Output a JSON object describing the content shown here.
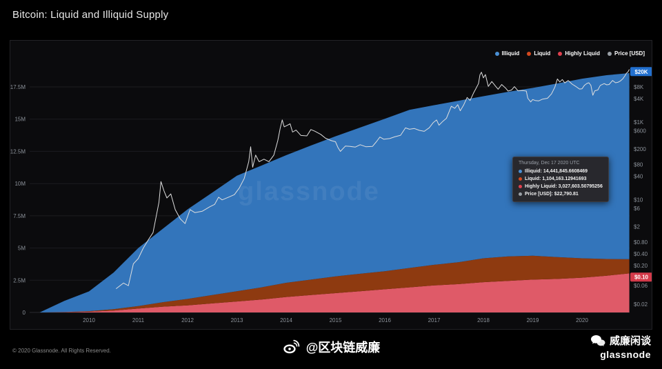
{
  "header": {
    "title": "Bitcoin: Liquid and Illiquid Supply"
  },
  "legend": {
    "items": [
      {
        "label": "Illiquid",
        "color": "#4a8fd4"
      },
      {
        "label": "Liquid",
        "color": "#d4491f"
      },
      {
        "label": "Highly Liquid",
        "color": "#e0404e"
      },
      {
        "label": "Price [USD]",
        "color": "#9aa0a6"
      }
    ]
  },
  "chart_data": {
    "type": "area",
    "stacked": true,
    "title": "Bitcoin: Liquid and Illiquid Supply",
    "unit": "BTC (millions, left axis) / USD (log, right axis)",
    "watermark": "glassnode",
    "x_years": [
      2009.0,
      2009.5,
      2010.0,
      2010.5,
      2011.0,
      2011.5,
      2012.0,
      2012.5,
      2013.0,
      2013.5,
      2014.0,
      2014.5,
      2015.0,
      2015.5,
      2016.0,
      2016.5,
      2017.0,
      2017.5,
      2018.0,
      2018.5,
      2019.0,
      2019.5,
      2020.0,
      2020.5,
      2020.96
    ],
    "series": [
      {
        "name": "Highly Liquid",
        "color": "#df5a68",
        "values": [
          0,
          0.02,
          0.06,
          0.15,
          0.3,
          0.45,
          0.55,
          0.7,
          0.85,
          1.0,
          1.2,
          1.35,
          1.5,
          1.65,
          1.8,
          1.95,
          2.1,
          2.2,
          2.35,
          2.45,
          2.55,
          2.6,
          2.7,
          2.85,
          3.03
        ]
      },
      {
        "name": "Liquid",
        "color": "#8e3a10",
        "values": [
          0,
          0.01,
          0.04,
          0.1,
          0.2,
          0.35,
          0.5,
          0.65,
          0.8,
          0.95,
          1.1,
          1.2,
          1.3,
          1.35,
          1.4,
          1.5,
          1.6,
          1.7,
          1.85,
          1.9,
          1.85,
          1.7,
          1.5,
          1.3,
          1.1
        ]
      },
      {
        "name": "Illiquid",
        "color": "#3375bb",
        "values": [
          0,
          0.87,
          1.53,
          2.85,
          4.5,
          5.7,
          6.95,
          7.95,
          8.96,
          9.45,
          9.9,
          10.4,
          10.87,
          11.35,
          11.83,
          12.27,
          12.38,
          12.53,
          12.58,
          12.77,
          13.02,
          13.47,
          13.94,
          14.26,
          14.44
        ]
      }
    ],
    "price_series": {
      "name": "Price [USD]",
      "color": "#dfdfdf",
      "points": [
        [
          2010.55,
          0.05
        ],
        [
          2010.7,
          0.07
        ],
        [
          2010.8,
          0.06
        ],
        [
          2010.9,
          0.22
        ],
        [
          2011.0,
          0.3
        ],
        [
          2011.1,
          0.55
        ],
        [
          2011.2,
          0.9
        ],
        [
          2011.3,
          1.4
        ],
        [
          2011.42,
          8.5
        ],
        [
          2011.46,
          29
        ],
        [
          2011.52,
          17
        ],
        [
          2011.58,
          11
        ],
        [
          2011.66,
          14
        ],
        [
          2011.75,
          5.5
        ],
        [
          2011.85,
          3.2
        ],
        [
          2011.95,
          2.4
        ],
        [
          2012.05,
          5.5
        ],
        [
          2012.15,
          4.6
        ],
        [
          2012.3,
          5.0
        ],
        [
          2012.45,
          6.5
        ],
        [
          2012.55,
          7.5
        ],
        [
          2012.63,
          11.5
        ],
        [
          2012.7,
          9.8
        ],
        [
          2012.85,
          11.8
        ],
        [
          2012.95,
          13.4
        ],
        [
          2013.05,
          20
        ],
        [
          2013.15,
          35
        ],
        [
          2013.24,
          95
        ],
        [
          2013.28,
          230
        ],
        [
          2013.32,
          68
        ],
        [
          2013.38,
          140
        ],
        [
          2013.45,
          95
        ],
        [
          2013.55,
          110
        ],
        [
          2013.65,
          95
        ],
        [
          2013.75,
          140
        ],
        [
          2013.83,
          330
        ],
        [
          2013.88,
          700
        ],
        [
          2013.92,
          1130
        ],
        [
          2013.96,
          750
        ],
        [
          2014.02,
          820
        ],
        [
          2014.08,
          900
        ],
        [
          2014.13,
          550
        ],
        [
          2014.2,
          620
        ],
        [
          2014.3,
          450
        ],
        [
          2014.42,
          440
        ],
        [
          2014.5,
          640
        ],
        [
          2014.58,
          580
        ],
        [
          2014.7,
          480
        ],
        [
          2014.8,
          380
        ],
        [
          2014.92,
          330
        ],
        [
          2015.0,
          310
        ],
        [
          2015.05,
          220
        ],
        [
          2015.1,
          175
        ],
        [
          2015.2,
          240
        ],
        [
          2015.3,
          235
        ],
        [
          2015.4,
          225
        ],
        [
          2015.5,
          260
        ],
        [
          2015.62,
          230
        ],
        [
          2015.75,
          235
        ],
        [
          2015.83,
          310
        ],
        [
          2015.9,
          410
        ],
        [
          2015.98,
          360
        ],
        [
          2016.1,
          375
        ],
        [
          2016.2,
          415
        ],
        [
          2016.32,
          455
        ],
        [
          2016.42,
          705
        ],
        [
          2016.5,
          650
        ],
        [
          2016.6,
          680
        ],
        [
          2016.7,
          610
        ],
        [
          2016.8,
          575
        ],
        [
          2016.9,
          710
        ],
        [
          2016.98,
          960
        ],
        [
          2017.05,
          1130
        ],
        [
          2017.1,
          830
        ],
        [
          2017.18,
          1050
        ],
        [
          2017.25,
          1250
        ],
        [
          2017.35,
          2550
        ],
        [
          2017.42,
          2250
        ],
        [
          2017.48,
          2800
        ],
        [
          2017.53,
          1950
        ],
        [
          2017.6,
          2750
        ],
        [
          2017.67,
          4300
        ],
        [
          2017.73,
          3600
        ],
        [
          2017.8,
          5600
        ],
        [
          2017.85,
          7400
        ],
        [
          2017.9,
          9800
        ],
        [
          2017.93,
          16500
        ],
        [
          2017.96,
          19300
        ],
        [
          2018.0,
          13800
        ],
        [
          2018.04,
          16800
        ],
        [
          2018.1,
          8300
        ],
        [
          2018.17,
          11100
        ],
        [
          2018.25,
          8300
        ],
        [
          2018.3,
          7000
        ],
        [
          2018.37,
          9300
        ],
        [
          2018.45,
          7500
        ],
        [
          2018.5,
          6300
        ],
        [
          2018.57,
          6700
        ],
        [
          2018.63,
          8200
        ],
        [
          2018.7,
          6400
        ],
        [
          2018.8,
          6500
        ],
        [
          2018.87,
          6300
        ],
        [
          2018.9,
          4100
        ],
        [
          2018.96,
          3300
        ],
        [
          2019.0,
          3800
        ],
        [
          2019.05,
          3600
        ],
        [
          2019.12,
          3500
        ],
        [
          2019.2,
          3900
        ],
        [
          2019.3,
          4100
        ],
        [
          2019.38,
          5300
        ],
        [
          2019.45,
          8000
        ],
        [
          2019.5,
          12900
        ],
        [
          2019.55,
          10800
        ],
        [
          2019.6,
          12500
        ],
        [
          2019.65,
          10200
        ],
        [
          2019.72,
          11800
        ],
        [
          2019.8,
          9500
        ],
        [
          2019.88,
          8200
        ],
        [
          2019.95,
          7100
        ],
        [
          2020.0,
          7200
        ],
        [
          2020.05,
          8900
        ],
        [
          2020.1,
          9900
        ],
        [
          2020.14,
          10300
        ],
        [
          2020.18,
          8800
        ],
        [
          2020.22,
          4900
        ],
        [
          2020.26,
          6400
        ],
        [
          2020.32,
          6700
        ],
        [
          2020.37,
          8800
        ],
        [
          2020.45,
          9800
        ],
        [
          2020.5,
          9100
        ],
        [
          2020.55,
          9300
        ],
        [
          2020.62,
          11800
        ],
        [
          2020.68,
          10300
        ],
        [
          2020.73,
          10600
        ],
        [
          2020.78,
          11500
        ],
        [
          2020.83,
          13100
        ],
        [
          2020.87,
          15500
        ],
        [
          2020.9,
          18200
        ],
        [
          2020.93,
          19400
        ],
        [
          2020.96,
          22790
        ]
      ]
    },
    "axes": {
      "left": {
        "ticks": [
          {
            "value": 0,
            "label": "0"
          },
          {
            "value": 2.5,
            "label": "2.5M"
          },
          {
            "value": 5,
            "label": "5M"
          },
          {
            "value": 7.5,
            "label": "7.5M"
          },
          {
            "value": 10,
            "label": "10M"
          },
          {
            "value": 12.5,
            "label": "12.5M"
          },
          {
            "value": 15,
            "label": "15M"
          },
          {
            "value": 17.5,
            "label": "17.5M"
          }
        ]
      },
      "right": {
        "scale": "log",
        "ticks": [
          {
            "value": 20000,
            "label": "$20K",
            "badge": "#2270cf"
          },
          {
            "value": 8000,
            "label": "$8K"
          },
          {
            "value": 4000,
            "label": "$4K"
          },
          {
            "value": 1000,
            "label": "$1K"
          },
          {
            "value": 600,
            "label": "$600"
          },
          {
            "value": 200,
            "label": "$200"
          },
          {
            "value": 80,
            "label": "$80"
          },
          {
            "value": 40,
            "label": "$40"
          },
          {
            "value": 10,
            "label": "$10"
          },
          {
            "value": 6,
            "label": "$6"
          },
          {
            "value": 2,
            "label": "$2"
          },
          {
            "value": 0.8,
            "label": "$0.80"
          },
          {
            "value": 0.4,
            "label": "$0.40"
          },
          {
            "value": 0.2,
            "label": "$0.20"
          },
          {
            "value": 0.1,
            "label": "$0.10",
            "badge": "#d43a4a"
          },
          {
            "value": 0.06,
            "label": "$0.06"
          },
          {
            "value": 0.02,
            "label": "$0.02"
          }
        ]
      },
      "x": {
        "ticks": [
          {
            "value": 2010,
            "label": "2010"
          },
          {
            "value": 2011,
            "label": "2011"
          },
          {
            "value": 2012,
            "label": "2012"
          },
          {
            "value": 2013,
            "label": "2013"
          },
          {
            "value": 2014,
            "label": "2014"
          },
          {
            "value": 2015,
            "label": "2015"
          },
          {
            "value": 2016,
            "label": "2016"
          },
          {
            "value": 2017,
            "label": "2017"
          },
          {
            "value": 2018,
            "label": "2018"
          },
          {
            "value": 2019,
            "label": "2019"
          },
          {
            "value": 2020,
            "label": "2020"
          }
        ]
      }
    }
  },
  "tooltip": {
    "date": "Thursday, Dec 17 2020 UTC",
    "rows": [
      {
        "label": "Illiquid",
        "value": "14,441,845.6608469",
        "color": "#4a8fd4"
      },
      {
        "label": "Liquid",
        "value": "1,104,163.12941693",
        "color": "#d4491f"
      },
      {
        "label": "Highly Liquid",
        "value": "3,027,603.50795256",
        "color": "#e0404e"
      },
      {
        "label": "Price [USD]",
        "value": "$22,790.81",
        "color": "#9aa0a6"
      }
    ]
  },
  "footer": {
    "copyright": "© 2020 Glassnode. All Rights Reserved.",
    "weibo_handle": "@区块链威廉",
    "wechat_name": "威廉闲谈",
    "glassnode_wordmark": "glassnode"
  }
}
